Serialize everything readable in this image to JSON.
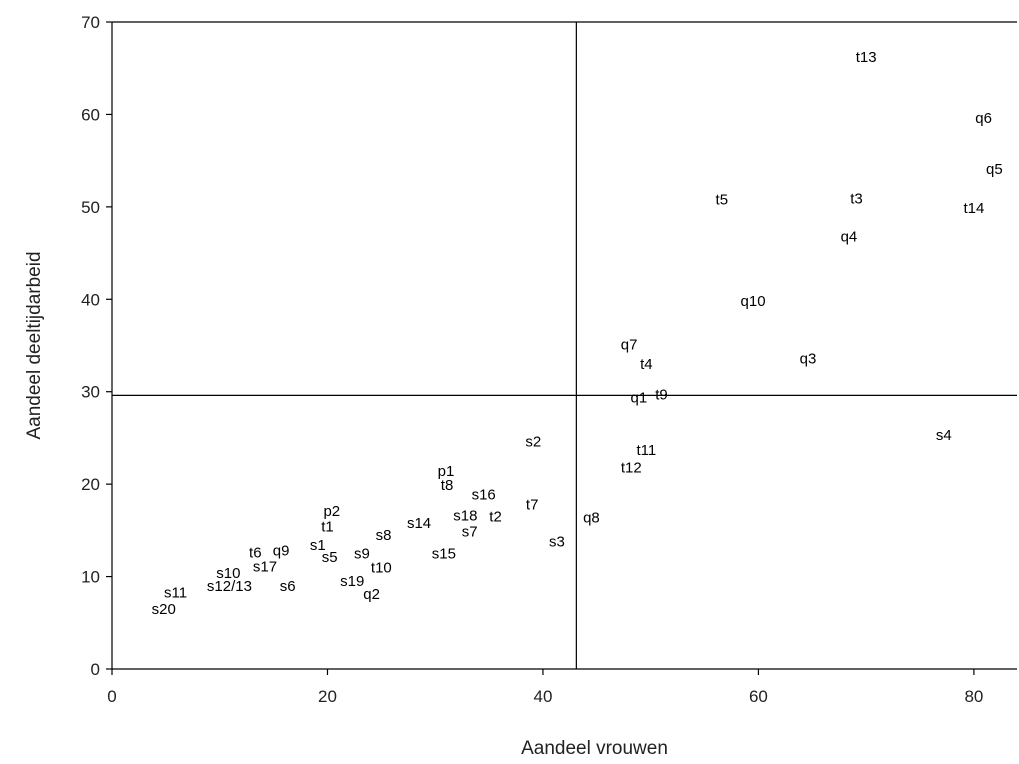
{
  "chart_data": {
    "type": "scatter",
    "title": "",
    "xlabel": "Aandeel vrouwen",
    "ylabel": "Aandeel deeltijdarbeid",
    "xlim": [
      0,
      84
    ],
    "ylim": [
      0,
      70
    ],
    "xticks": [
      0,
      20,
      40,
      60,
      80
    ],
    "yticks": [
      0,
      10,
      20,
      30,
      40,
      50,
      60,
      70
    ],
    "grid": false,
    "reference_lines": {
      "x": 43.1,
      "y": 29.6
    },
    "points": [
      {
        "label": "t13",
        "x": 70.0,
        "y": 66.2
      },
      {
        "label": "q6",
        "x": 80.9,
        "y": 59.6
      },
      {
        "label": "q5",
        "x": 81.9,
        "y": 54.1
      },
      {
        "label": "t5",
        "x": 56.6,
        "y": 50.8
      },
      {
        "label": "t3",
        "x": 69.1,
        "y": 50.9
      },
      {
        "label": "t14",
        "x": 80.0,
        "y": 49.9
      },
      {
        "label": "q4",
        "x": 68.4,
        "y": 46.8
      },
      {
        "label": "q10",
        "x": 59.5,
        "y": 39.8
      },
      {
        "label": "q7",
        "x": 48.0,
        "y": 35.1
      },
      {
        "label": "t4",
        "x": 49.6,
        "y": 33.0
      },
      {
        "label": "q3",
        "x": 64.6,
        "y": 33.6
      },
      {
        "label": "q1",
        "x": 48.9,
        "y": 29.4
      },
      {
        "label": "t9",
        "x": 51.0,
        "y": 29.7
      },
      {
        "label": "s4",
        "x": 77.2,
        "y": 25.3
      },
      {
        "label": "s2",
        "x": 39.1,
        "y": 24.6
      },
      {
        "label": "t11",
        "x": 49.6,
        "y": 23.7
      },
      {
        "label": "t12",
        "x": 48.2,
        "y": 21.8
      },
      {
        "label": "p1",
        "x": 31.0,
        "y": 21.4
      },
      {
        "label": "t8",
        "x": 31.1,
        "y": 19.9
      },
      {
        "label": "s16",
        "x": 34.5,
        "y": 18.9
      },
      {
        "label": "t7",
        "x": 39.0,
        "y": 17.8
      },
      {
        "label": "p2",
        "x": 20.4,
        "y": 17.1
      },
      {
        "label": "s18",
        "x": 32.8,
        "y": 16.6
      },
      {
        "label": "t2",
        "x": 35.6,
        "y": 16.5
      },
      {
        "label": "q8",
        "x": 44.5,
        "y": 16.4
      },
      {
        "label": "s14",
        "x": 28.5,
        "y": 15.8
      },
      {
        "label": "t1",
        "x": 20.0,
        "y": 15.4
      },
      {
        "label": "s7",
        "x": 33.2,
        "y": 14.9
      },
      {
        "label": "s8",
        "x": 25.2,
        "y": 14.5
      },
      {
        "label": "s3",
        "x": 41.3,
        "y": 13.8
      },
      {
        "label": "s1",
        "x": 19.1,
        "y": 13.4
      },
      {
        "label": "q9",
        "x": 15.7,
        "y": 12.8
      },
      {
        "label": "t6",
        "x": 13.3,
        "y": 12.6
      },
      {
        "label": "s9",
        "x": 23.2,
        "y": 12.5
      },
      {
        "label": "s15",
        "x": 30.8,
        "y": 12.5
      },
      {
        "label": "s5",
        "x": 20.2,
        "y": 12.1
      },
      {
        "label": "s17",
        "x": 14.2,
        "y": 11.1
      },
      {
        "label": "t10",
        "x": 25.0,
        "y": 11.0
      },
      {
        "label": "s10",
        "x": 10.8,
        "y": 10.4
      },
      {
        "label": "s19",
        "x": 22.3,
        "y": 9.5
      },
      {
        "label": "s12/13",
        "x": 10.9,
        "y": 9.0
      },
      {
        "label": "s6",
        "x": 16.3,
        "y": 9.0
      },
      {
        "label": "s11",
        "x": 5.9,
        "y": 8.3
      },
      {
        "label": "q2",
        "x": 24.1,
        "y": 8.1
      },
      {
        "label": "s20",
        "x": 4.8,
        "y": 6.5
      }
    ]
  }
}
